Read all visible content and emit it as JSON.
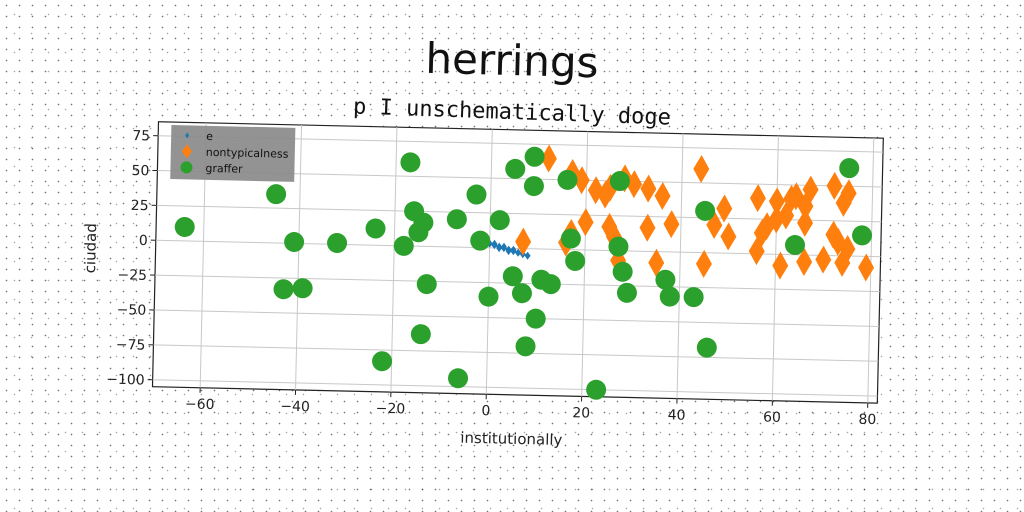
{
  "chart_data": {
    "type": "scatter",
    "title": "herrings",
    "subtitle": "p I unschematically doge",
    "xlabel": "institutionally",
    "ylabel": "ciudad",
    "xlim": [
      -70,
      82
    ],
    "ylim": [
      -105,
      85
    ],
    "xticks": [
      -60,
      -40,
      -20,
      0,
      20,
      40,
      60,
      80
    ],
    "yticks": [
      75,
      50,
      25,
      0,
      -25,
      -50,
      -75,
      -100
    ],
    "grid": true,
    "legend_position": "top-left",
    "series": [
      {
        "name": "e",
        "marker": "small-diamond",
        "color": "#1f77b4",
        "points": [
          [
            0,
            3
          ],
          [
            1,
            2
          ],
          [
            2,
            1
          ],
          [
            3,
            0
          ],
          [
            4,
            -1
          ],
          [
            5,
            -2
          ],
          [
            6,
            -3
          ],
          [
            7,
            -4
          ],
          [
            8,
            -5
          ],
          [
            2,
            0
          ],
          [
            4,
            -2
          ],
          [
            6,
            -3
          ],
          [
            3,
            1
          ],
          [
            5,
            -1
          ],
          [
            1,
            3
          ]
        ]
      },
      {
        "name": "nontypicalness",
        "marker": "diamond",
        "color": "#ff7f0e",
        "points": [
          [
            12,
            65
          ],
          [
            17,
            55
          ],
          [
            19,
            50
          ],
          [
            22,
            43
          ],
          [
            24,
            40
          ],
          [
            25,
            45
          ],
          [
            28,
            52
          ],
          [
            30,
            48
          ],
          [
            33,
            45
          ],
          [
            36,
            40
          ],
          [
            20,
            20
          ],
          [
            17,
            12
          ],
          [
            25,
            17
          ],
          [
            33,
            17
          ],
          [
            38,
            20
          ],
          [
            16,
            5
          ],
          [
            26,
            10
          ],
          [
            7,
            5
          ],
          [
            27,
            -7
          ],
          [
            35,
            -8
          ],
          [
            45,
            -8
          ],
          [
            47,
            20
          ],
          [
            50,
            12
          ],
          [
            56,
            2
          ],
          [
            57,
            15
          ],
          [
            58,
            20
          ],
          [
            60,
            25
          ],
          [
            62,
            28
          ],
          [
            63,
            40
          ],
          [
            64,
            42
          ],
          [
            66,
            35
          ],
          [
            56,
            40
          ],
          [
            60,
            38
          ],
          [
            67,
            47
          ],
          [
            72,
            50
          ],
          [
            75,
            45
          ],
          [
            74,
            38
          ],
          [
            66,
            23
          ],
          [
            72,
            15
          ],
          [
            73,
            10
          ],
          [
            75,
            5
          ],
          [
            66,
            -5
          ],
          [
            70,
            -3
          ],
          [
            61,
            -8
          ],
          [
            74,
            -5
          ],
          [
            79,
            -8
          ],
          [
            44,
            60
          ],
          [
            49,
            32
          ]
        ]
      },
      {
        "name": "graffer",
        "marker": "circle",
        "color": "#2ca02c",
        "points": [
          [
            -64,
            10
          ],
          [
            -45,
            35
          ],
          [
            -43,
            -33
          ],
          [
            -41,
            1
          ],
          [
            -39,
            -32
          ],
          [
            -32,
            1
          ],
          [
            -24,
            12
          ],
          [
            -22,
            -83
          ],
          [
            -18,
            0
          ],
          [
            -17,
            60
          ],
          [
            -16,
            25
          ],
          [
            -15,
            10
          ],
          [
            -14,
            17
          ],
          [
            -13,
            -27
          ],
          [
            -14,
            -63
          ],
          [
            -7,
            20
          ],
          [
            -6,
            -94
          ],
          [
            -3,
            38
          ],
          [
            -2,
            5
          ],
          [
            0,
            -35
          ],
          [
            2,
            20
          ],
          [
            5,
            -20
          ],
          [
            5,
            57
          ],
          [
            7,
            -32
          ],
          [
            8,
            -70
          ],
          [
            9,
            66
          ],
          [
            9,
            45
          ],
          [
            10,
            -50
          ],
          [
            11,
            -22
          ],
          [
            13,
            -25
          ],
          [
            16,
            50
          ],
          [
            17,
            8
          ],
          [
            18,
            -8
          ],
          [
            23,
            -100
          ],
          [
            27,
            3
          ],
          [
            28,
            -15
          ],
          [
            29,
            -30
          ],
          [
            27,
            50
          ],
          [
            37,
            -20
          ],
          [
            38,
            -32
          ],
          [
            43,
            -32
          ],
          [
            45,
            30
          ],
          [
            46,
            -68
          ],
          [
            64,
            7
          ],
          [
            75,
            63
          ],
          [
            78,
            15
          ]
        ]
      }
    ]
  }
}
